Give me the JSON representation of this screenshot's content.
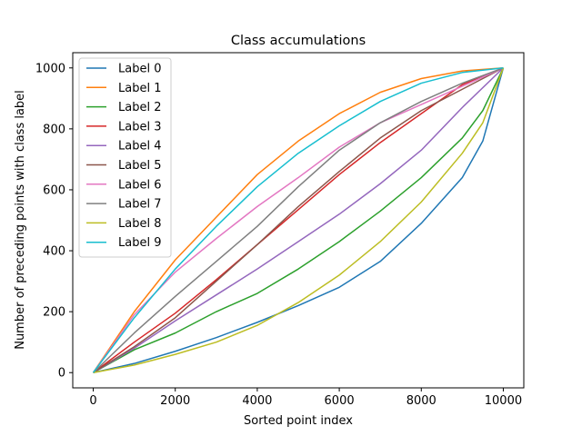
{
  "chart_data": {
    "type": "line",
    "title": "Class accumulations",
    "xlabel": "Sorted point index",
    "ylabel": "Number of preceding points with class label",
    "xlim": [
      -500,
      10500
    ],
    "ylim": [
      -50,
      1050
    ],
    "xticks": [
      0,
      2000,
      4000,
      6000,
      8000,
      10000
    ],
    "yticks": [
      0,
      200,
      400,
      600,
      800,
      1000
    ],
    "grid": false,
    "legend_position": "upper left",
    "series": [
      {
        "name": "Label 0",
        "color": "#1f77b4",
        "x": [
          0,
          1000,
          2000,
          3000,
          4000,
          5000,
          6000,
          7000,
          8000,
          9000,
          9500,
          10000
        ],
        "y": [
          0,
          30,
          70,
          115,
          165,
          220,
          280,
          365,
          490,
          640,
          760,
          1000
        ]
      },
      {
        "name": "Label 1",
        "color": "#ff7f0e",
        "x": [
          0,
          1000,
          2000,
          3000,
          4000,
          5000,
          6000,
          7000,
          8000,
          9000,
          10000
        ],
        "y": [
          0,
          200,
          370,
          510,
          650,
          760,
          850,
          920,
          965,
          990,
          1000
        ]
      },
      {
        "name": "Label 2",
        "color": "#2ca02c",
        "x": [
          0,
          1000,
          2000,
          3000,
          4000,
          5000,
          6000,
          7000,
          8000,
          9000,
          9500,
          10000
        ],
        "y": [
          0,
          75,
          130,
          200,
          260,
          340,
          430,
          530,
          640,
          770,
          860,
          1000
        ]
      },
      {
        "name": "Label 3",
        "color": "#d62728",
        "x": [
          0,
          1000,
          2000,
          3000,
          4000,
          5000,
          6000,
          7000,
          8000,
          9000,
          10000
        ],
        "y": [
          0,
          100,
          195,
          305,
          420,
          535,
          650,
          755,
          850,
          945,
          1000
        ]
      },
      {
        "name": "Label 4",
        "color": "#9467bd",
        "x": [
          0,
          1000,
          2000,
          3000,
          4000,
          5000,
          6000,
          7000,
          8000,
          9000,
          10000
        ],
        "y": [
          0,
          80,
          170,
          255,
          340,
          430,
          520,
          620,
          730,
          870,
          1000
        ]
      },
      {
        "name": "Label 5",
        "color": "#8c564b",
        "x": [
          0,
          1000,
          2000,
          3000,
          4000,
          5000,
          6000,
          7000,
          8000,
          9000,
          10000
        ],
        "y": [
          0,
          85,
          180,
          300,
          420,
          545,
          660,
          770,
          860,
          930,
          1000
        ]
      },
      {
        "name": "Label 6",
        "color": "#e377c2",
        "x": [
          0,
          1000,
          2000,
          3000,
          4000,
          5000,
          6000,
          7000,
          8000,
          9000,
          10000
        ],
        "y": [
          0,
          190,
          330,
          440,
          545,
          640,
          740,
          820,
          880,
          940,
          1000
        ]
      },
      {
        "name": "Label 7",
        "color": "#7f7f7f",
        "x": [
          0,
          1000,
          2000,
          3000,
          4000,
          5000,
          6000,
          7000,
          8000,
          9000,
          10000
        ],
        "y": [
          0,
          130,
          250,
          365,
          480,
          610,
          730,
          820,
          890,
          950,
          1000
        ]
      },
      {
        "name": "Label 8",
        "color": "#bcbd22",
        "x": [
          0,
          1000,
          2000,
          3000,
          4000,
          5000,
          6000,
          7000,
          8000,
          9000,
          9500,
          10000
        ],
        "y": [
          0,
          25,
          60,
          100,
          155,
          230,
          320,
          430,
          560,
          720,
          820,
          1000
        ]
      },
      {
        "name": "Label 9",
        "color": "#17becf",
        "x": [
          0,
          1000,
          2000,
          3000,
          4000,
          5000,
          6000,
          7000,
          8000,
          9000,
          10000
        ],
        "y": [
          0,
          180,
          340,
          480,
          610,
          720,
          810,
          890,
          950,
          985,
          1000
        ]
      }
    ]
  }
}
